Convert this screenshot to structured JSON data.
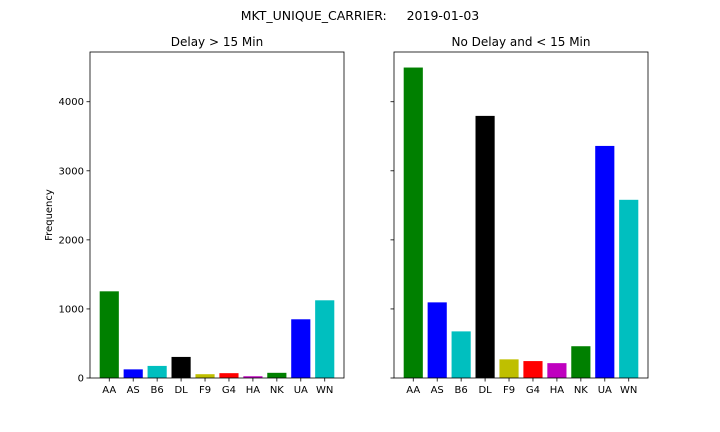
{
  "figure": {
    "suptitle": "MKT_UNIQUE_CARRIER:     2019-01-03"
  },
  "chart_data": [
    {
      "type": "bar",
      "title": "Delay > 15 Min",
      "ylabel": "Frequency",
      "xlabel": "",
      "categories": [
        "AA",
        "AS",
        "B6",
        "DL",
        "F9",
        "G4",
        "HA",
        "NK",
        "UA",
        "WN"
      ],
      "values": [
        1255,
        125,
        175,
        305,
        55,
        70,
        25,
        75,
        850,
        1125
      ],
      "colors": [
        "#008000",
        "#0000ff",
        "#00bfbf",
        "#000000",
        "#bfbf00",
        "#ff0000",
        "#bf00bf",
        "#008000",
        "#0000ff",
        "#00bfbf"
      ],
      "ylim": [
        0,
        4720
      ],
      "yticks": [
        0,
        1000,
        2000,
        3000,
        4000
      ],
      "grid": false
    },
    {
      "type": "bar",
      "title": "No Delay and < 15 Min",
      "xlabel": "",
      "categories": [
        "AA",
        "AS",
        "B6",
        "DL",
        "F9",
        "G4",
        "HA",
        "NK",
        "UA",
        "WN"
      ],
      "values": [
        4495,
        1095,
        675,
        3795,
        270,
        245,
        215,
        460,
        3360,
        2580
      ],
      "colors": [
        "#008000",
        "#0000ff",
        "#00bfbf",
        "#000000",
        "#bfbf00",
        "#ff0000",
        "#bf00bf",
        "#008000",
        "#0000ff",
        "#00bfbf"
      ],
      "ylim": [
        0,
        4720
      ],
      "yticks": [
        0,
        1000,
        2000,
        3000,
        4000
      ],
      "sharey": true,
      "grid": false
    }
  ]
}
